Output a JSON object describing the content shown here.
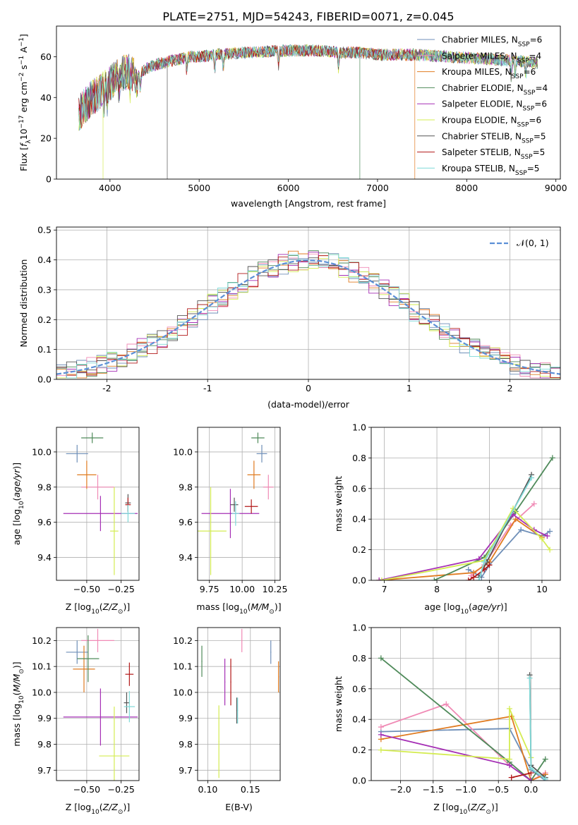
{
  "figure_title": "PLATE=2751, MJD=54243, FIBERID=0071, z=0.045",
  "colors": {
    "miles_chabrier": "#6f8fb8",
    "miles_salpeter": "#f08ab5",
    "miles_kroupa": "#e07b20",
    "elodie_chabrier": "#4f8a5a",
    "elodie_salpeter": "#a52fb5",
    "elodie_kroupa": "#d4ec52",
    "stelib_chabrier": "#555555",
    "stelib_salpeter": "#b21818",
    "stelib_kroupa": "#7fdad8",
    "gaussian": "#5b8fd6"
  },
  "chart_data": [
    {
      "id": "spectrum",
      "type": "line",
      "xlabel": "wavelength [Angstrom, rest frame]",
      "ylabel": "Flux [f_λ10^-17 erg cm^-2 s^-1 A^-1]",
      "xlim": [
        3400,
        9050
      ],
      "ylim": [
        0,
        75
      ],
      "xticks": [
        4000,
        5000,
        6000,
        7000,
        8000,
        9000
      ],
      "yticks": [
        0,
        20,
        40,
        60
      ],
      "grid": false,
      "legend": "top-right",
      "series": [
        {
          "name": "Chabrier MILES, N_SSP=6",
          "key": "miles_chabrier"
        },
        {
          "name": "Salpeter MILES, N_SSP=4",
          "key": "miles_salpeter"
        },
        {
          "name": "Kroupa MILES, N_SSP=6",
          "key": "miles_kroupa"
        },
        {
          "name": "Chabrier ELODIE, N_SSP=4",
          "key": "elodie_chabrier"
        },
        {
          "name": "Salpeter ELODIE, N_SSP=6",
          "key": "elodie_salpeter"
        },
        {
          "name": "Kroupa ELODIE, N_SSP=6",
          "key": "elodie_kroupa"
        },
        {
          "name": "Chabrier STELIB, N_SSP=5",
          "key": "stelib_chabrier"
        },
        {
          "name": "Salpeter STELIB, N_SSP=5",
          "key": "stelib_salpeter"
        },
        {
          "name": "Kroupa STELIB, N_SSP=5",
          "key": "stelib_kroupa"
        }
      ],
      "continuum": [
        [
          3650,
          32
        ],
        [
          3700,
          35
        ],
        [
          3800,
          40
        ],
        [
          3900,
          43
        ],
        [
          4000,
          47
        ],
        [
          4100,
          51
        ],
        [
          4200,
          53
        ],
        [
          4300,
          50
        ],
        [
          4400,
          54
        ],
        [
          4500,
          56
        ],
        [
          4600,
          57
        ],
        [
          4700,
          58
        ],
        [
          4800,
          59
        ],
        [
          4900,
          60
        ],
        [
          5000,
          60
        ],
        [
          5200,
          61
        ],
        [
          5500,
          62
        ],
        [
          6000,
          63
        ],
        [
          6300,
          63
        ],
        [
          6600,
          62
        ],
        [
          6800,
          62
        ],
        [
          7000,
          61
        ],
        [
          7400,
          61
        ],
        [
          7800,
          60
        ],
        [
          8200,
          59
        ],
        [
          8500,
          58
        ],
        [
          8800,
          57
        ]
      ]
    },
    {
      "id": "residuals",
      "type": "histogram",
      "xlabel": "(data-model)/error",
      "ylabel": "Normed distribution",
      "xlim": [
        -2.5,
        2.5
      ],
      "ylim": [
        0,
        0.51
      ],
      "xticks": [
        -2,
        -1,
        0,
        1,
        2
      ],
      "yticks": [
        0.0,
        0.1,
        0.2,
        0.3,
        0.4,
        0.5
      ],
      "grid": true,
      "legend": "top-right",
      "gaussian_label": "𝒩(0, 1)",
      "bin_width": 0.1
    },
    {
      "id": "age_vs_Z",
      "type": "errorbar",
      "xlabel": "Z [log10(Z/Z⊙)]",
      "ylabel": "age [log10(age/yr)]",
      "xlim": [
        -0.72,
        -0.12
      ],
      "ylim": [
        9.27,
        10.14
      ],
      "xticks": [
        -0.5,
        -0.25
      ],
      "xticklabels": [
        "−0.50",
        "−0.25"
      ],
      "yticks": [
        9.4,
        9.6,
        9.8,
        10.0
      ],
      "grid": true,
      "points": [
        {
          "key": "miles_chabrier",
          "x": -0.57,
          "xerr": 0.08,
          "y": 9.99,
          "yerr": 0.05
        },
        {
          "key": "miles_salpeter",
          "x": -0.42,
          "xerr": 0.12,
          "y": 9.8,
          "yerr": 0.07
        },
        {
          "key": "miles_kroupa",
          "x": -0.5,
          "xerr": 0.07,
          "y": 9.87,
          "yerr": 0.08
        },
        {
          "key": "elodie_chabrier",
          "x": -0.46,
          "xerr": 0.08,
          "y": 10.08,
          "yerr": 0.03
        },
        {
          "key": "elodie_salpeter",
          "x": -0.4,
          "xerr": 0.27,
          "y": 9.65,
          "yerr": 0.1
        },
        {
          "key": "elodie_kroupa",
          "x": -0.3,
          "xerr": 0.03,
          "y": 9.55,
          "yerr": 0.25
        },
        {
          "key": "stelib_chabrier",
          "x": -0.2,
          "xerr": 0.02,
          "y": 9.71,
          "yerr": 0.05
        },
        {
          "key": "stelib_salpeter",
          "x": -0.2,
          "xerr": 0.02,
          "y": 9.7,
          "yerr": 0.04
        },
        {
          "key": "stelib_kroupa",
          "x": -0.2,
          "xerr": 0.05,
          "y": 9.65,
          "yerr": 0.05
        }
      ]
    },
    {
      "id": "age_vs_mass",
      "type": "errorbar",
      "xlabel": "mass [log10(M/M⊙)]",
      "ylabel": "",
      "xlim": [
        9.66,
        10.29
      ],
      "ylim": [
        9.27,
        10.14
      ],
      "xticks": [
        9.75,
        10.0,
        10.25
      ],
      "xticklabels": [
        "9.75",
        "10.00",
        "10.25"
      ],
      "yticks": [
        9.4,
        9.6,
        9.8,
        10.0
      ],
      "grid": true,
      "points": [
        {
          "key": "miles_chabrier",
          "x": 10.15,
          "xerr": 0.04,
          "y": 9.99,
          "yerr": 0.05
        },
        {
          "key": "miles_salpeter",
          "x": 10.2,
          "xerr": 0.04,
          "y": 9.8,
          "yerr": 0.07
        },
        {
          "key": "miles_kroupa",
          "x": 10.09,
          "xerr": 0.05,
          "y": 9.87,
          "yerr": 0.08
        },
        {
          "key": "elodie_chabrier",
          "x": 10.12,
          "xerr": 0.05,
          "y": 10.08,
          "yerr": 0.03
        },
        {
          "key": "elodie_salpeter",
          "x": 9.91,
          "xerr": 0.22,
          "y": 9.65,
          "yerr": 0.14
        },
        {
          "key": "elodie_kroupa",
          "x": 9.76,
          "xerr": 0.12,
          "y": 9.55,
          "yerr": 0.25
        },
        {
          "key": "stelib_chabrier",
          "x": 9.94,
          "xerr": 0.03,
          "y": 9.7,
          "yerr": 0.04
        },
        {
          "key": "stelib_salpeter",
          "x": 10.07,
          "xerr": 0.05,
          "y": 9.69,
          "yerr": 0.04
        },
        {
          "key": "stelib_kroupa",
          "x": 9.95,
          "xerr": 0.03,
          "y": 9.65,
          "yerr": 0.07
        }
      ]
    },
    {
      "id": "weight_vs_age",
      "type": "line",
      "xlabel": "age [log10(age/yr)]",
      "ylabel": "mass weight",
      "xlim": [
        6.75,
        10.35
      ],
      "ylim": [
        0,
        1.0
      ],
      "xticks": [
        7,
        8,
        9,
        10
      ],
      "xticklabels": [
        "7",
        "8",
        "9",
        "10"
      ],
      "yticks": [
        0.0,
        0.2,
        0.4,
        0.6,
        0.8,
        1.0
      ],
      "grid": true,
      "series": [
        {
          "key": "miles_chabrier",
          "x": [
            8.6,
            8.85,
            9.0,
            9.6,
            10.0,
            10.15
          ],
          "y": [
            0.07,
            0.02,
            0.1,
            0.33,
            0.29,
            0.32
          ]
        },
        {
          "key": "miles_salpeter",
          "x": [
            8.65,
            8.9,
            9.4,
            9.85
          ],
          "y": [
            0.03,
            0.1,
            0.36,
            0.5
          ]
        },
        {
          "key": "miles_kroupa",
          "x": [
            6.9,
            8.7,
            9.0,
            9.5,
            10.0
          ],
          "y": [
            0.0,
            0.05,
            0.12,
            0.4,
            0.28
          ]
        },
        {
          "key": "elodie_chabrier",
          "x": [
            7.95,
            8.9,
            9.5,
            10.2
          ],
          "y": [
            0.0,
            0.15,
            0.45,
            0.8
          ]
        },
        {
          "key": "elodie_salpeter",
          "x": [
            6.9,
            8.8,
            9.45,
            9.85,
            10.1
          ],
          "y": [
            0.0,
            0.14,
            0.43,
            0.33,
            0.29
          ]
        },
        {
          "key": "elodie_kroupa",
          "x": [
            6.95,
            8.9,
            9.45,
            10.0,
            10.15
          ],
          "y": [
            0.0,
            0.13,
            0.47,
            0.27,
            0.2
          ]
        },
        {
          "key": "stelib_chabrier",
          "x": [
            8.8,
            8.95,
            9.8
          ],
          "y": [
            0.02,
            0.12,
            0.69
          ]
        },
        {
          "key": "stelib_salpeter",
          "x": [
            8.6,
            8.7,
            8.9,
            9.0
          ],
          "y": [
            0.0,
            0.02,
            0.07,
            0.1
          ]
        },
        {
          "key": "stelib_kroupa",
          "x": [
            8.8,
            8.9,
            9.8
          ],
          "y": [
            0.0,
            0.12,
            0.67
          ]
        }
      ]
    },
    {
      "id": "mass_vs_Z",
      "type": "errorbar",
      "xlabel": "Z [log10(Z/Z⊙)]",
      "ylabel": "mass [log10(M/M⊙)]",
      "xlim": [
        -0.72,
        -0.12
      ],
      "ylim": [
        9.66,
        10.25
      ],
      "xticks": [
        -0.5,
        -0.25
      ],
      "xticklabels": [
        "−0.50",
        "−0.25"
      ],
      "yticks": [
        9.7,
        9.8,
        9.9,
        10.0,
        10.1,
        10.2
      ],
      "grid": true,
      "points": [
        {
          "key": "miles_chabrier",
          "x": -0.57,
          "xerr": 0.08,
          "y": 10.155,
          "yerr": 0.045
        },
        {
          "key": "miles_salpeter",
          "x": -0.42,
          "xerr": 0.12,
          "y": 10.2,
          "yerr": 0.045
        },
        {
          "key": "miles_kroupa",
          "x": -0.52,
          "xerr": 0.08,
          "y": 10.09,
          "yerr": 0.09
        },
        {
          "key": "elodie_chabrier",
          "x": -0.49,
          "xerr": 0.08,
          "y": 10.13,
          "yerr": 0.09
        },
        {
          "key": "elodie_salpeter",
          "x": -0.4,
          "xerr": 0.27,
          "y": 9.905,
          "yerr": 0.11
        },
        {
          "key": "elodie_kroupa",
          "x": -0.3,
          "xerr": 0.11,
          "y": 9.755,
          "yerr": 0.19
        },
        {
          "key": "stelib_chabrier",
          "x": -0.21,
          "xerr": 0.02,
          "y": 9.96,
          "yerr": 0.04
        },
        {
          "key": "stelib_salpeter",
          "x": -0.19,
          "xerr": 0.03,
          "y": 10.07,
          "yerr": 0.045
        },
        {
          "key": "stelib_kroupa",
          "x": -0.19,
          "xerr": 0.04,
          "y": 9.945,
          "yerr": 0.06
        }
      ]
    },
    {
      "id": "mass_vs_EBV",
      "type": "errorbar",
      "xlabel": "E(B-V)",
      "ylabel": "",
      "xlim": [
        0.088,
        0.185
      ],
      "ylim": [
        9.66,
        10.25
      ],
      "xticks": [
        0.1,
        0.15
      ],
      "xticklabels": [
        "0.10",
        "0.15"
      ],
      "yticks": [
        9.7,
        9.8,
        9.9,
        10.0,
        10.1,
        10.2
      ],
      "grid": true,
      "points": [
        {
          "key": "miles_chabrier",
          "x": 0.174,
          "xerr": 0.0005,
          "y": 10.155,
          "yerr": 0.045
        },
        {
          "key": "miles_salpeter",
          "x": 0.14,
          "xerr": 0.0005,
          "y": 10.2,
          "yerr": 0.045
        },
        {
          "key": "miles_kroupa",
          "x": 0.183,
          "xerr": 0.0005,
          "y": 10.06,
          "yerr": 0.06
        },
        {
          "key": "elodie_chabrier",
          "x": 0.093,
          "xerr": 0.0005,
          "y": 10.12,
          "yerr": 0.06
        },
        {
          "key": "elodie_salpeter",
          "x": 0.12,
          "xerr": 0.0005,
          "y": 10.04,
          "yerr": 0.09
        },
        {
          "key": "elodie_kroupa",
          "x": 0.113,
          "xerr": 0.0005,
          "y": 9.81,
          "yerr": 0.14
        },
        {
          "key": "stelib_chabrier",
          "x": 0.134,
          "xerr": 0.0005,
          "y": 9.93,
          "yerr": 0.05
        },
        {
          "key": "stelib_salpeter",
          "x": 0.127,
          "xerr": 0.0005,
          "y": 10.04,
          "yerr": 0.09
        },
        {
          "key": "stelib_kroupa",
          "x": 0.135,
          "xerr": 0.0005,
          "y": 9.93,
          "yerr": 0.05
        }
      ]
    },
    {
      "id": "weight_vs_Z",
      "type": "line",
      "xlabel": "Z [log10(Z/Z⊙)]",
      "ylabel": "mass weight",
      "xlim": [
        -2.45,
        0.45
      ],
      "ylim": [
        0,
        1.0
      ],
      "xticks": [
        -2.0,
        -1.5,
        -1.0,
        -0.5,
        0.0
      ],
      "xticklabels": [
        "−2.0",
        "−1.5",
        "−1.0",
        "−0.5",
        "0.0"
      ],
      "yticks": [
        0.0,
        0.2,
        0.4,
        0.6,
        0.8,
        1.0
      ],
      "grid": true,
      "series": [
        {
          "key": "miles_chabrier",
          "x": [
            -2.3,
            -0.33,
            0.0,
            0.22
          ],
          "y": [
            0.32,
            0.34,
            0.07,
            0.0
          ]
        },
        {
          "key": "miles_salpeter",
          "x": [
            -2.3,
            -1.3,
            -0.33,
            0.0,
            0.22
          ],
          "y": [
            0.35,
            0.5,
            0.1,
            0.0,
            0.05
          ]
        },
        {
          "key": "miles_kroupa",
          "x": [
            -2.3,
            -0.3,
            0.0,
            0.22
          ],
          "y": [
            0.27,
            0.42,
            0.0,
            0.04
          ]
        },
        {
          "key": "elodie_chabrier",
          "x": [
            -2.3,
            -0.33,
            0.0,
            0.22
          ],
          "y": [
            0.8,
            0.12,
            0.0,
            0.14
          ]
        },
        {
          "key": "elodie_salpeter",
          "x": [
            -2.3,
            -0.33,
            0.0
          ],
          "y": [
            0.3,
            0.1,
            0.0
          ]
        },
        {
          "key": "elodie_kroupa",
          "x": [
            -2.3,
            -0.33,
            -0.33,
            0.0
          ],
          "y": [
            0.2,
            0.14,
            0.47,
            0.15
          ]
        },
        {
          "key": "stelib_chabrier",
          "x": [
            -0.02,
            0.0,
            0.22
          ],
          "y": [
            0.69,
            0.1,
            0.02
          ]
        },
        {
          "key": "stelib_salpeter",
          "x": [
            -0.3,
            0.0
          ],
          "y": [
            0.02,
            0.05
          ]
        },
        {
          "key": "stelib_kroupa",
          "x": [
            -0.02,
            0.0,
            0.22
          ],
          "y": [
            0.67,
            0.08,
            0.01
          ]
        }
      ]
    }
  ]
}
